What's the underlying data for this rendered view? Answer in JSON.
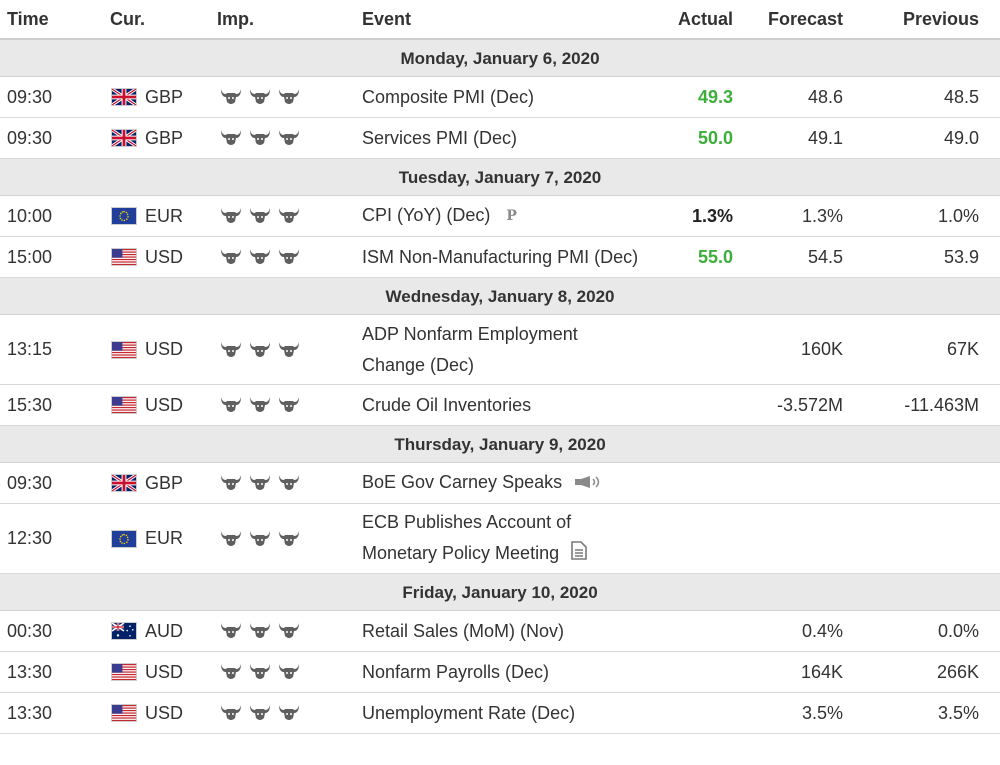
{
  "columns": {
    "time": "Time",
    "currency": "Cur.",
    "importance": "Imp.",
    "event": "Event",
    "actual": "Actual",
    "forecast": "Forecast",
    "previous": "Previous"
  },
  "colors": {
    "positive": "#3cae3a",
    "neutral": "#222222",
    "day_bg": "#e9e9e9"
  },
  "days": [
    {
      "label": "Monday, January 6, 2020",
      "events": [
        {
          "time": "09:30",
          "currency": "GBP",
          "flag": "gb-flag-icon",
          "event": "Composite PMI (Dec)",
          "actual": "49.3",
          "actual_tone": "green",
          "forecast": "48.6",
          "previous": "48.5",
          "importance": 3
        },
        {
          "time": "09:30",
          "currency": "GBP",
          "flag": "gb-flag-icon",
          "event": "Services PMI (Dec)",
          "actual": "50.0",
          "actual_tone": "green",
          "forecast": "49.1",
          "previous": "49.0",
          "importance": 3
        }
      ]
    },
    {
      "label": "Tuesday, January 7, 2020",
      "events": [
        {
          "time": "10:00",
          "currency": "EUR",
          "flag": "eu-flag-icon",
          "event": "CPI (YoY) (Dec)",
          "event_icon": "preliminary-icon",
          "event_icon_glyph": "P",
          "actual": "1.3%",
          "actual_tone": "black",
          "forecast": "1.3%",
          "previous": "1.0%",
          "importance": 3
        },
        {
          "time": "15:00",
          "currency": "USD",
          "flag": "us-flag-icon",
          "event": "ISM Non-Manufacturing PMI (Dec)",
          "actual": "55.0",
          "actual_tone": "green",
          "forecast": "54.5",
          "previous": "53.9",
          "importance": 3
        }
      ]
    },
    {
      "label": "Wednesday, January 8, 2020",
      "events": [
        {
          "time": "13:15",
          "currency": "USD",
          "flag": "us-flag-icon",
          "event": "ADP Nonfarm Employment Change (Dec)",
          "actual": "",
          "forecast": "160K",
          "previous": "67K",
          "importance": 3
        },
        {
          "time": "15:30",
          "currency": "USD",
          "flag": "us-flag-icon",
          "event": "Crude Oil Inventories",
          "actual": "",
          "forecast": "-3.572M",
          "previous": "-11.463M",
          "importance": 3
        }
      ]
    },
    {
      "label": "Thursday, January 9, 2020",
      "events": [
        {
          "time": "09:30",
          "currency": "GBP",
          "flag": "gb-flag-icon",
          "event": "BoE Gov Carney Speaks",
          "event_icon": "speech-icon",
          "actual": "",
          "forecast": "",
          "previous": "",
          "importance": 3
        },
        {
          "time": "12:30",
          "currency": "EUR",
          "flag": "eu-flag-icon",
          "event": "ECB Publishes Account of Monetary Policy Meeting",
          "event_icon": "document-icon",
          "actual": "",
          "forecast": "",
          "previous": "",
          "importance": 3
        }
      ]
    },
    {
      "label": "Friday, January 10, 2020",
      "events": [
        {
          "time": "00:30",
          "currency": "AUD",
          "flag": "au-flag-icon",
          "event": "Retail Sales (MoM) (Nov)",
          "actual": "",
          "forecast": "0.4%",
          "previous": "0.0%",
          "importance": 3
        },
        {
          "time": "13:30",
          "currency": "USD",
          "flag": "us-flag-icon",
          "event": "Nonfarm Payrolls (Dec)",
          "actual": "",
          "forecast": "164K",
          "previous": "266K",
          "importance": 3
        },
        {
          "time": "13:30",
          "currency": "USD",
          "flag": "us-flag-icon",
          "event": "Unemployment Rate (Dec)",
          "actual": "",
          "forecast": "3.5%",
          "previous": "3.5%",
          "importance": 3
        }
      ]
    }
  ]
}
